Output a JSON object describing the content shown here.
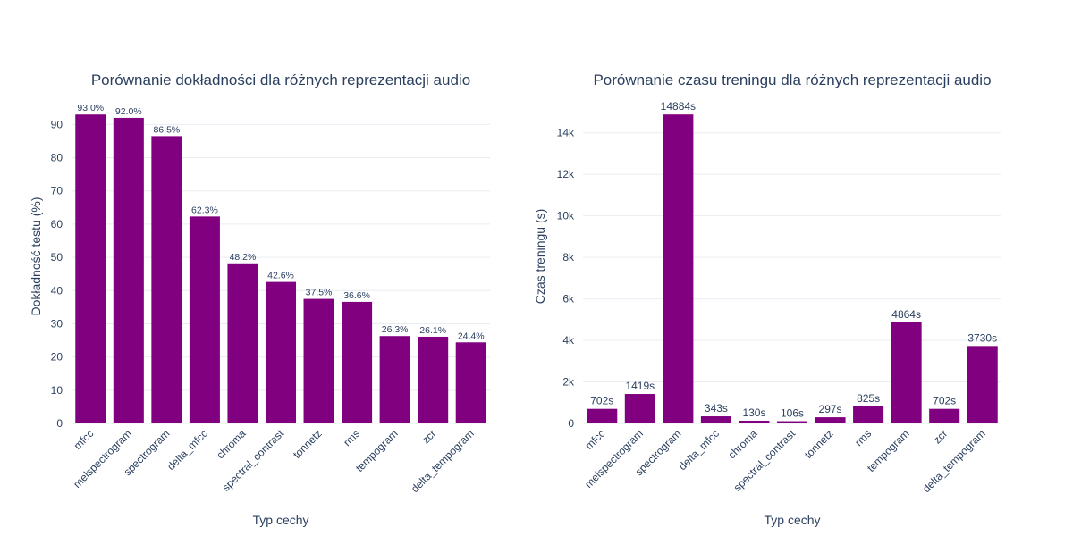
{
  "chart_data": [
    {
      "type": "bar",
      "title": "Porównanie dokładności dla różnych reprezentacji audio",
      "xlabel": "Typ cechy",
      "ylabel": "Dokładność testu (%)",
      "categories": [
        "mfcc",
        "melspectrogram",
        "spectrogram",
        "delta_mfcc",
        "chroma",
        "spectral_contrast",
        "tonnetz",
        "rms",
        "tempogram",
        "zcr",
        "delta_tempogram"
      ],
      "values": [
        93.0,
        92.0,
        86.5,
        62.3,
        48.2,
        42.6,
        37.5,
        36.6,
        26.3,
        26.1,
        24.4
      ],
      "data_labels": [
        "93.0%",
        "92.0%",
        "86.5%",
        "62.3%",
        "48.2%",
        "42.6%",
        "37.5%",
        "36.6%",
        "26.3%",
        "26.1%",
        "24.4%"
      ],
      "yticks": [
        0,
        10,
        20,
        30,
        40,
        50,
        60,
        70,
        80,
        90
      ],
      "ytick_labels": [
        "0",
        "10",
        "20",
        "30",
        "40",
        "50",
        "60",
        "70",
        "80",
        "90"
      ],
      "ylim": [
        0,
        97.9
      ],
      "grid": true,
      "bar_color": "#800080"
    },
    {
      "type": "bar",
      "title": "Porównanie czasu treningu dla różnych reprezentacji audio",
      "xlabel": "Typ cechy",
      "ylabel": "Czas treningu (s)",
      "categories": [
        "mfcc",
        "melspectrogram",
        "spectrogram",
        "delta_mfcc",
        "chroma",
        "spectral_contrast",
        "tonnetz",
        "rms",
        "tempogram",
        "zcr",
        "delta_tempogram"
      ],
      "values": [
        702,
        1419,
        14884,
        343,
        130,
        106,
        297,
        825,
        4864,
        702,
        3730
      ],
      "data_labels": [
        "702s",
        "1419s",
        "14884s",
        "343s",
        "130s",
        "106s",
        "297s",
        "825s",
        "4864s",
        "702s",
        "3730s"
      ],
      "yticks": [
        0,
        2000,
        4000,
        6000,
        8000,
        10000,
        12000,
        14000
      ],
      "ytick_labels": [
        "0",
        "2k",
        "4k",
        "6k",
        "8k",
        "10k",
        "12k",
        "14k"
      ],
      "ylim": [
        0,
        15667
      ],
      "grid": true,
      "bar_color": "#800080"
    }
  ]
}
